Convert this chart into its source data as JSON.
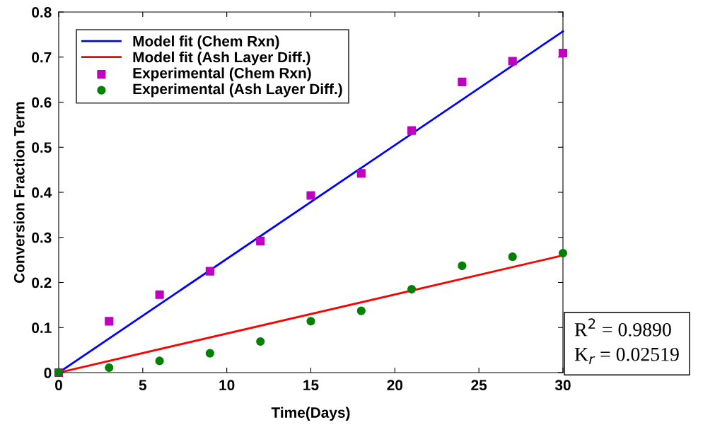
{
  "chart_data": {
    "type": "scatter",
    "xlabel": "Time(Days)",
    "ylabel": "Conversion Fraction Term",
    "xlim": [
      0,
      30
    ],
    "ylim": [
      0,
      0.8
    ],
    "xticks": [
      0,
      5,
      10,
      15,
      20,
      25,
      30
    ],
    "yticks": [
      0,
      0.1,
      0.2,
      0.3,
      0.4,
      0.5,
      0.6,
      0.7,
      0.8
    ],
    "grid": false,
    "legend": "top left",
    "series": [
      {
        "name": "Model fit (Chem Rxn)",
        "type": "line",
        "color": "#0000ff",
        "marker": "none",
        "line_style": "solid",
        "x": [
          0,
          30
        ],
        "values": [
          0,
          0.757
        ]
      },
      {
        "name": "Model fit (Ash Layer Diff.)",
        "type": "line",
        "color": "#ff0000",
        "marker": "none",
        "line_style": "solid",
        "x": [
          0,
          30
        ],
        "values": [
          0,
          0.26
        ]
      },
      {
        "name": "Experimental (Chem Rxn)",
        "color": "#bf00bf",
        "marker": "square",
        "x": [
          0,
          3,
          6,
          9,
          12,
          15,
          18,
          21,
          24,
          27,
          30
        ],
        "values": [
          0,
          0.114,
          0.173,
          0.225,
          0.292,
          0.393,
          0.442,
          0.537,
          0.645,
          0.691,
          0.709
        ]
      },
      {
        "name": "Experimental (Ash Layer Diff.)",
        "color": "#008000",
        "marker": "circle",
        "x": [
          0,
          3,
          6,
          9,
          12,
          15,
          18,
          21,
          24,
          27,
          30
        ],
        "values": [
          0,
          0.011,
          0.026,
          0.043,
          0.069,
          0.114,
          0.137,
          0.185,
          0.237,
          0.257,
          0.265
        ]
      }
    ],
    "annotations": [
      "R$^{2}$ = 0.9890",
      "K$_{r}$ = 0.02519"
    ]
  }
}
